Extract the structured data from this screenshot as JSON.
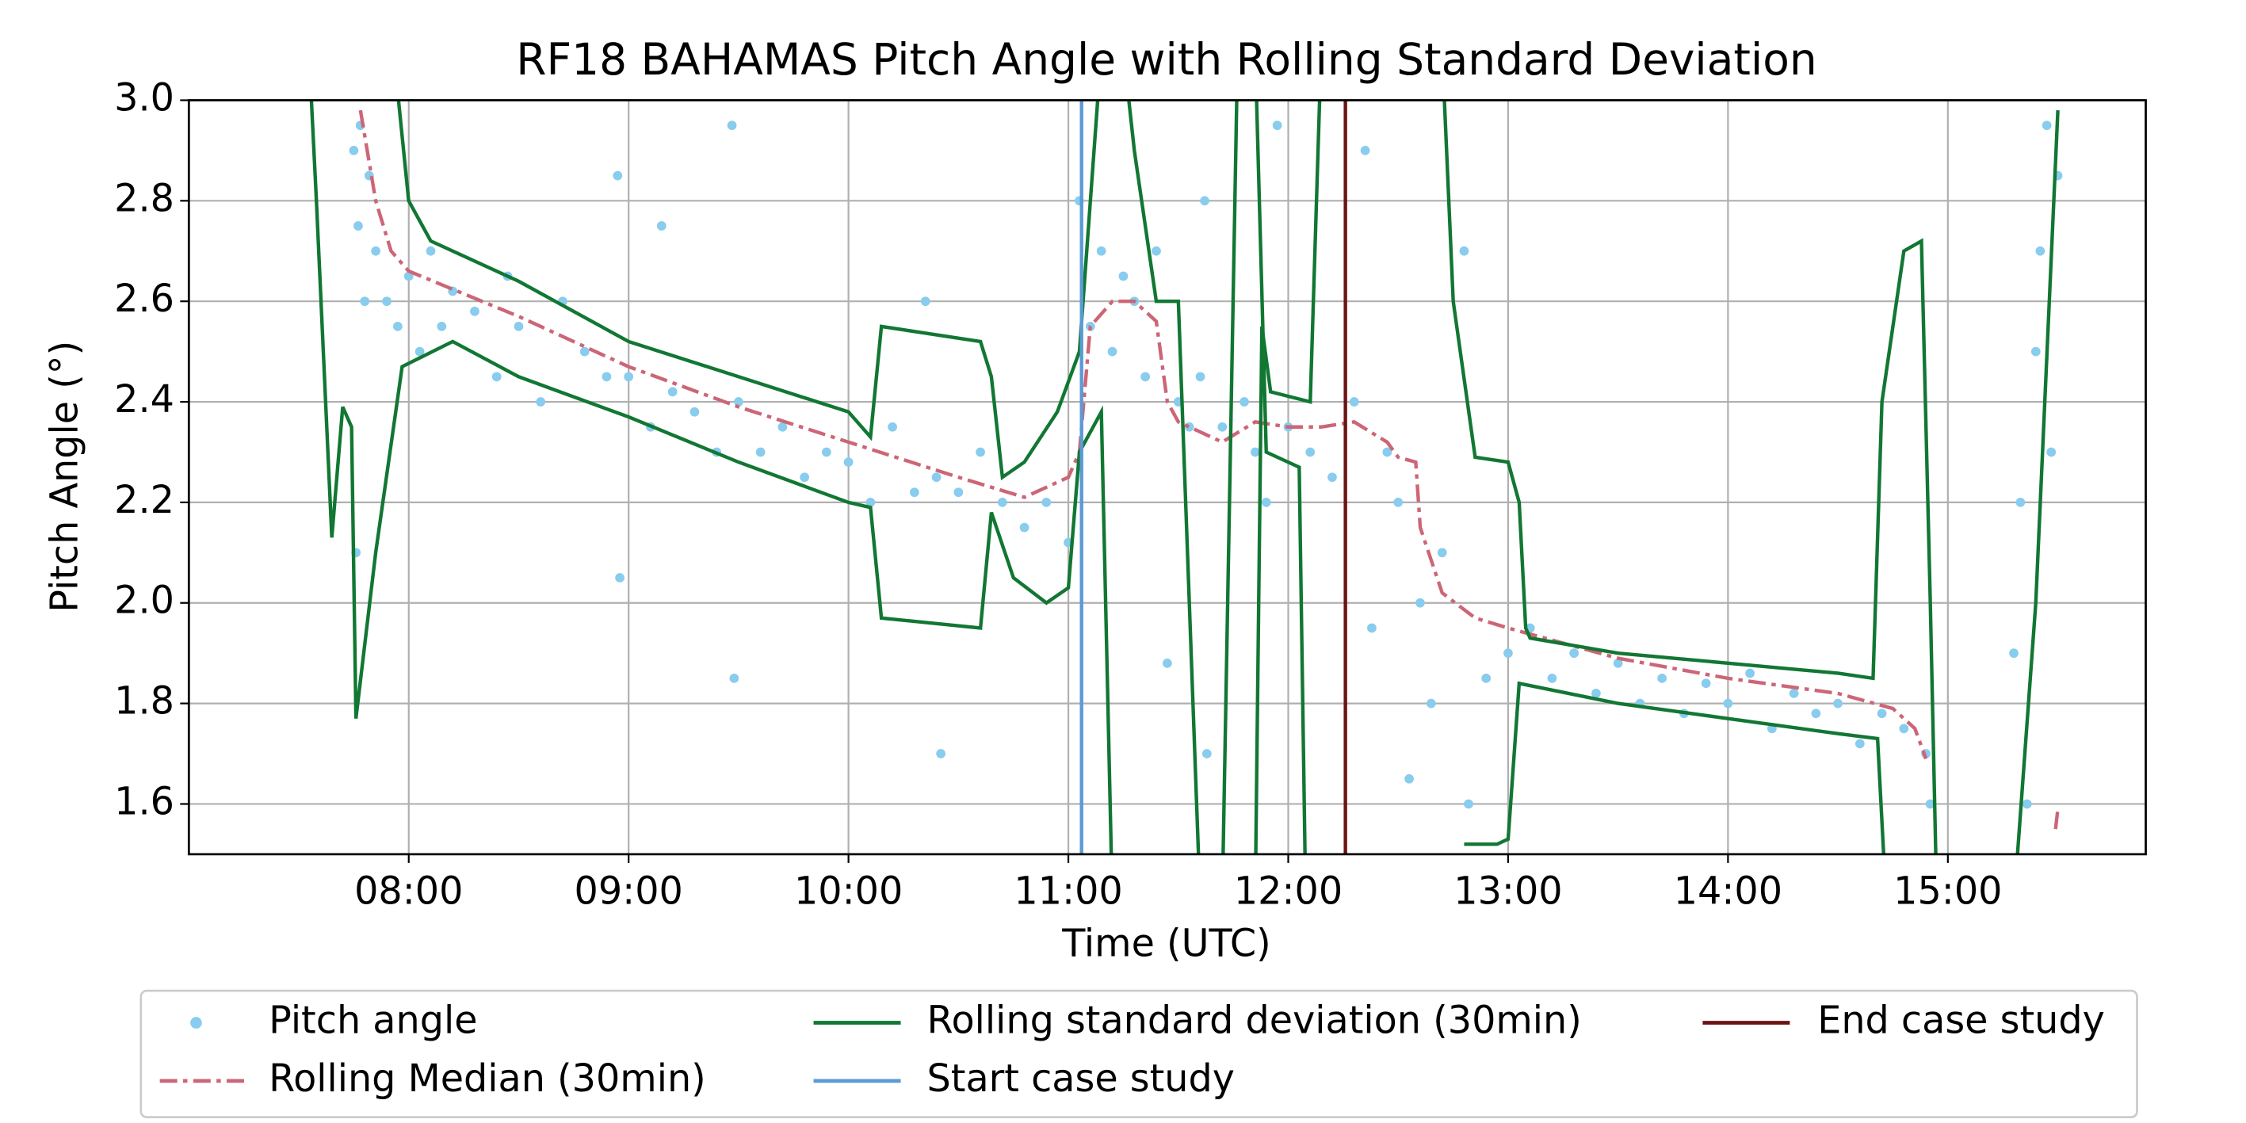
{
  "chart_data": {
    "type": "line",
    "title": "RF18 BAHAMAS Pitch Angle with Rolling Standard Deviation",
    "xlabel": "Time (UTC)",
    "ylabel": "Pitch Angle (°)",
    "xlim": [
      7.0,
      15.9
    ],
    "ylim": [
      1.5,
      3.0
    ],
    "xticks": [
      {
        "value": 8,
        "label": "08:00"
      },
      {
        "value": 9,
        "label": "09:00"
      },
      {
        "value": 10,
        "label": "10:00"
      },
      {
        "value": 11,
        "label": "11:00"
      },
      {
        "value": 12,
        "label": "12:00"
      },
      {
        "value": 13,
        "label": "13:00"
      },
      {
        "value": 14,
        "label": "14:00"
      },
      {
        "value": 15,
        "label": "15:00"
      }
    ],
    "yticks": [
      1.6,
      1.8,
      {
        "value": 2,
        "label": "2.0"
      },
      2.2,
      2.4,
      2.6,
      2.8,
      {
        "value": 3,
        "label": "3.0"
      }
    ],
    "grid": true,
    "legend": "below",
    "series": [
      {
        "name": "Pitch angle",
        "kind": "scatter",
        "color": "#88ccee",
        "x": [
          7.75,
          7.76,
          7.77,
          7.78,
          7.8,
          7.82,
          7.85,
          7.9,
          7.95,
          8.0,
          8.05,
          8.1,
          8.15,
          8.2,
          8.3,
          8.4,
          8.45,
          8.5,
          8.6,
          8.7,
          8.8,
          8.9,
          8.95,
          8.96,
          9.0,
          9.1,
          9.15,
          9.2,
          9.3,
          9.4,
          9.47,
          9.48,
          9.5,
          9.6,
          9.7,
          9.8,
          9.9,
          10.0,
          10.1,
          10.2,
          10.3,
          10.35,
          10.4,
          10.42,
          10.5,
          10.6,
          10.7,
          10.8,
          10.9,
          11.0,
          11.05,
          11.1,
          11.15,
          11.2,
          11.25,
          11.3,
          11.35,
          11.4,
          11.45,
          11.5,
          11.55,
          11.6,
          11.62,
          11.63,
          11.7,
          11.8,
          11.85,
          11.9,
          11.95,
          12.0,
          12.1,
          12.2,
          12.3,
          12.35,
          12.38,
          12.45,
          12.5,
          12.55,
          12.6,
          12.65,
          12.7,
          12.8,
          12.82,
          12.9,
          13.0,
          13.1,
          13.2,
          13.3,
          13.4,
          13.5,
          13.6,
          13.7,
          13.8,
          13.9,
          14.0,
          14.1,
          14.2,
          14.3,
          14.4,
          14.5,
          14.6,
          14.7,
          14.8,
          14.9,
          14.92,
          15.3,
          15.33,
          15.36,
          15.4,
          15.42,
          15.45,
          15.47,
          15.5
        ],
        "values": [
          2.9,
          2.1,
          2.75,
          2.95,
          2.6,
          2.85,
          2.7,
          2.6,
          2.55,
          2.65,
          2.5,
          2.7,
          2.55,
          2.62,
          2.58,
          2.45,
          2.65,
          2.55,
          2.4,
          2.6,
          2.5,
          2.45,
          2.85,
          2.05,
          2.45,
          2.35,
          2.75,
          2.42,
          2.38,
          2.3,
          2.95,
          1.85,
          2.4,
          2.3,
          2.35,
          2.25,
          2.3,
          2.28,
          2.2,
          2.35,
          2.22,
          2.6,
          2.25,
          1.7,
          2.22,
          2.3,
          2.2,
          2.15,
          2.2,
          2.12,
          2.8,
          2.55,
          2.7,
          2.5,
          2.65,
          2.6,
          2.45,
          2.7,
          1.88,
          2.4,
          2.35,
          2.45,
          2.8,
          1.7,
          2.35,
          2.4,
          2.3,
          2.2,
          2.95,
          2.35,
          2.3,
          2.25,
          2.4,
          2.9,
          1.95,
          2.3,
          2.2,
          1.65,
          2.0,
          1.8,
          2.1,
          2.7,
          1.6,
          1.85,
          1.9,
          1.95,
          1.85,
          1.9,
          1.82,
          1.88,
          1.8,
          1.85,
          1.78,
          1.84,
          1.8,
          1.86,
          1.75,
          1.82,
          1.78,
          1.8,
          1.72,
          1.78,
          1.75,
          1.7,
          1.6,
          1.9,
          2.2,
          1.6,
          2.5,
          2.7,
          2.95,
          2.3,
          2.85
        ]
      },
      {
        "name": "Rolling Median (30min)",
        "kind": "line",
        "linestyle": "dashdot",
        "color": "#cc6677",
        "x": [
          7.78,
          7.85,
          7.92,
          8.0,
          8.5,
          9.0,
          9.5,
          10.0,
          10.5,
          10.8,
          11.0,
          11.05,
          11.1,
          11.2,
          11.3,
          11.4,
          11.45,
          11.5,
          11.7,
          11.85,
          12.0,
          12.15,
          12.3,
          12.45,
          12.5,
          12.58,
          12.6,
          12.7,
          12.85,
          13.0,
          13.5,
          14.0,
          14.5,
          14.75,
          14.85,
          14.9,
          null,
          15.49,
          15.5
        ],
        "values": [
          2.98,
          2.8,
          2.7,
          2.66,
          2.57,
          2.47,
          2.39,
          2.32,
          2.25,
          2.21,
          2.25,
          2.3,
          2.55,
          2.6,
          2.6,
          2.56,
          2.4,
          2.36,
          2.32,
          2.36,
          2.35,
          2.35,
          2.36,
          2.32,
          2.29,
          2.28,
          2.15,
          2.02,
          1.97,
          1.95,
          1.89,
          1.85,
          1.82,
          1.79,
          1.75,
          1.69,
          null,
          1.55,
          1.59
        ]
      },
      {
        "name": "Rolling standard deviation (30min)",
        "kind": "band-lines",
        "color": "#117733",
        "x_upper": [
          7.93,
          8.0,
          8.1,
          8.5,
          9.0,
          9.5,
          10.0,
          10.1,
          10.15,
          10.6,
          10.65,
          10.7,
          10.8,
          10.95,
          11.05,
          11.15,
          11.25,
          11.3,
          11.4,
          11.5,
          11.6,
          null,
          11.85,
          11.88,
          11.92,
          12.1,
          12.15,
          null,
          12.7,
          12.75,
          12.85,
          13.0,
          13.05,
          13.08,
          13.1,
          13.5,
          14.0,
          14.5,
          14.66,
          14.7,
          14.8,
          14.88,
          14.92,
          14.95,
          null,
          15.3,
          15.4,
          15.5
        ],
        "upper": [
          3.1,
          2.8,
          2.72,
          2.64,
          2.52,
          2.45,
          2.38,
          2.33,
          2.55,
          2.52,
          2.45,
          2.25,
          2.28,
          2.38,
          2.5,
          3.1,
          3.1,
          2.9,
          2.6,
          2.6,
          1.4,
          null,
          1.4,
          2.55,
          2.42,
          2.4,
          3.1,
          null,
          3.1,
          2.6,
          2.29,
          2.28,
          2.2,
          1.95,
          1.93,
          1.9,
          1.88,
          1.86,
          1.85,
          2.4,
          2.7,
          2.72,
          2.0,
          1.4,
          null,
          1.4,
          2.0,
          2.98
        ],
        "x_lower": [
          7.5,
          7.58,
          7.65,
          7.7,
          7.74,
          7.76,
          7.85,
          7.97,
          8.2,
          8.5,
          9.0,
          9.5,
          10.0,
          10.1,
          10.15,
          10.6,
          10.65,
          10.75,
          10.9,
          11.0,
          11.05,
          11.15,
          11.2,
          null,
          11.7,
          11.77,
          null,
          11.85,
          11.9,
          12.05,
          12.08,
          null,
          12.8,
          12.95,
          13.0,
          13.05,
          13.5,
          14.0,
          14.5,
          14.68,
          14.72
        ],
        "lower": [
          3.5,
          2.8,
          2.13,
          2.39,
          2.35,
          1.77,
          2.1,
          2.47,
          2.52,
          2.45,
          2.37,
          2.28,
          2.2,
          2.19,
          1.97,
          1.95,
          2.18,
          2.05,
          2.0,
          2.03,
          2.3,
          2.38,
          1.4,
          null,
          1.4,
          3.1,
          null,
          3.1,
          2.3,
          2.27,
          1.4,
          null,
          1.52,
          1.52,
          1.53,
          1.84,
          1.8,
          1.77,
          1.74,
          1.73,
          1.4
        ]
      }
    ],
    "vlines": [
      {
        "name": "Start case study",
        "color": "#5b9bd5",
        "x": 11.06
      },
      {
        "name": "End case study",
        "color": "#6b1414",
        "x": 12.26
      }
    ]
  }
}
